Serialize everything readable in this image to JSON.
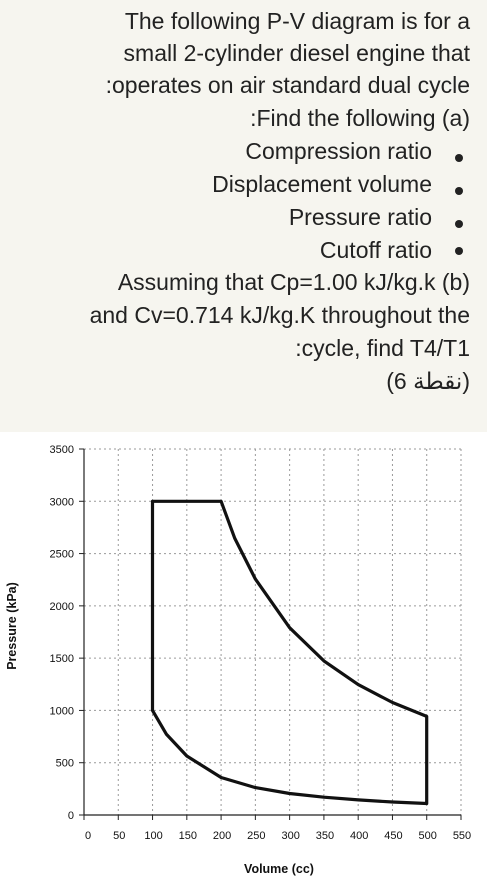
{
  "question": {
    "lines": [
      "The following P-V diagram is for a",
      "small 2-cylinder diesel engine that",
      ":operates on air standard dual cycle",
      ":Find the following  (a)",
      "Compression ratio",
      "Displacement volume",
      "Pressure ratio",
      "Cutoff ratio",
      "Assuming that Cp=1.00 kJ/kg.k    (b)",
      "and Cv=0.714 kJ/kg.K throughout the",
      ":cycle, find T4/T1",
      "(6 نقطة)"
    ]
  },
  "chart_data": {
    "type": "line",
    "title": "",
    "xlabel": "Volume (cc)",
    "ylabel": "Pressure (kPa)",
    "xlim": [
      0,
      550
    ],
    "ylim": [
      0,
      3500
    ],
    "xticks": [
      0,
      50,
      100,
      150,
      200,
      250,
      300,
      350,
      400,
      450,
      500,
      550
    ],
    "yticks": [
      0,
      500,
      1000,
      1500,
      2000,
      2500,
      3000,
      3500
    ],
    "grid": true,
    "series": [
      {
        "points": [
          [
            100,
            1000
          ],
          [
            100,
            3000
          ],
          [
            200,
            3000
          ],
          [
            220,
            2645
          ],
          [
            250,
            2256
          ],
          [
            300,
            1791
          ],
          [
            350,
            1474
          ],
          [
            400,
            1247
          ],
          [
            450,
            1076
          ],
          [
            500,
            943
          ],
          [
            500,
            110
          ],
          [
            450,
            124
          ],
          [
            400,
            144
          ],
          [
            350,
            170
          ],
          [
            300,
            206
          ],
          [
            250,
            262
          ],
          [
            200,
            359
          ],
          [
            150,
            564
          ],
          [
            120,
            774
          ],
          [
            100,
            1000
          ]
        ]
      }
    ]
  }
}
